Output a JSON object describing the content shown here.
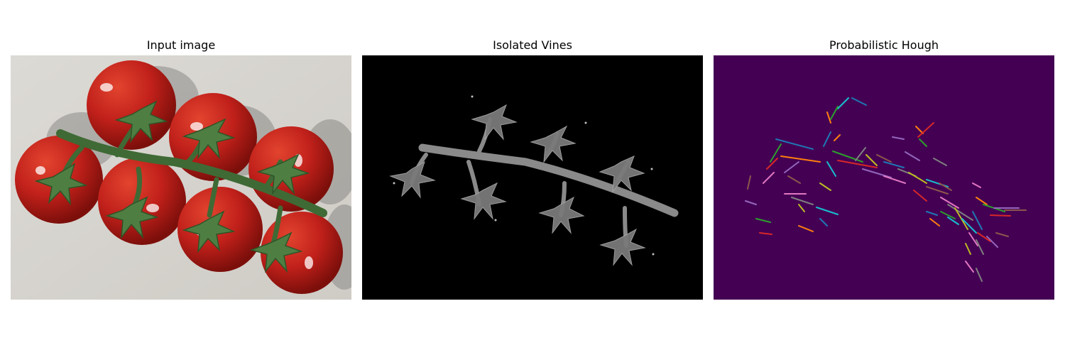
{
  "figure": {
    "panels": [
      {
        "title": "Input image",
        "content": "photo of tomatoes on the vine"
      },
      {
        "title": "Isolated Vines",
        "content": "grayscale vine mask on black background"
      },
      {
        "title": "Probabilistic Hough",
        "content": "colored line segments on dark purple background"
      }
    ]
  },
  "colors": {
    "tomato": "#c0201a",
    "tomato_dark": "#8e120d",
    "vine": "#3f6a35",
    "paper": "#d9d7d2",
    "mask_bg": "#000000",
    "mask_vine": "#8a8a8a",
    "hough_bg": "#440154",
    "segment_palette": [
      "#1f77b4",
      "#ff7f0e",
      "#2ca02c",
      "#d62728",
      "#9467bd",
      "#8c564b",
      "#e377c2",
      "#7f7f7f",
      "#bcbd22",
      "#17becf"
    ]
  }
}
